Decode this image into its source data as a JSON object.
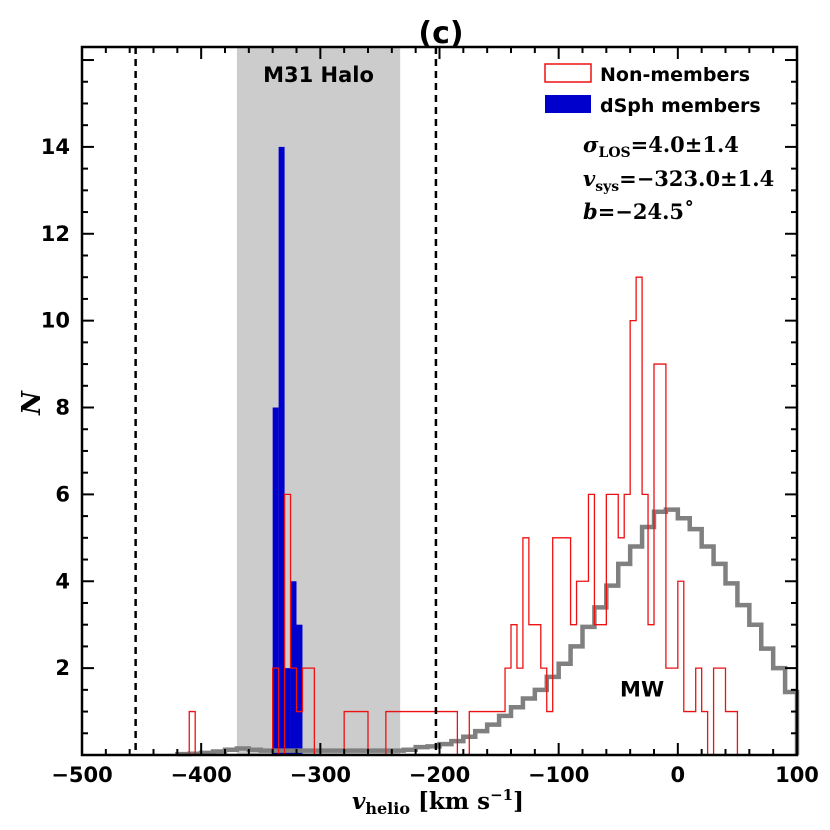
{
  "chart_data": {
    "type": "histogram",
    "title": "(c)",
    "xlabel": "v_helio [km s^-1]",
    "xlabel_parts": {
      "main": "v",
      "sub": "helio",
      "unit_open": " [km s",
      "unit_sup": "−1",
      "unit_close": "]"
    },
    "ylabel": "N",
    "xlim": [
      -500,
      100
    ],
    "ylim": [
      0,
      16.3
    ],
    "xticks": [
      -500,
      -400,
      -300,
      -200,
      -100,
      0,
      100
    ],
    "xtick_labels": [
      "−500",
      "−400",
      "−300",
      "−200",
      "−100",
      "0",
      "100"
    ],
    "yticks": [
      2,
      4,
      6,
      8,
      10,
      12,
      14
    ],
    "ytick_labels": [
      "2",
      "4",
      "6",
      "8",
      "10",
      "12",
      "14"
    ],
    "band": {
      "label": "M31 Halo",
      "from": -370,
      "to": -233,
      "color": "#cccccc"
    },
    "vlines": [
      -455,
      -203
    ],
    "nonmembers": {
      "name": "Non-members",
      "color": "#ee1111",
      "bin_width": 5,
      "bins": [
        [
          -410,
          1
        ],
        [
          -340,
          2
        ],
        [
          -330,
          6
        ],
        [
          -325,
          2
        ],
        [
          -320,
          1
        ],
        [
          -315,
          2
        ],
        [
          -310,
          2
        ],
        [
          -280,
          1
        ],
        [
          -275,
          1
        ],
        [
          -270,
          1
        ],
        [
          -265,
          1
        ],
        [
          -245,
          1
        ],
        [
          -240,
          1
        ],
        [
          -235,
          1
        ],
        [
          -230,
          1
        ],
        [
          -225,
          1
        ],
        [
          -220,
          1
        ],
        [
          -215,
          1
        ],
        [
          -210,
          1
        ],
        [
          -205,
          1
        ],
        [
          -200,
          1
        ],
        [
          -195,
          1
        ],
        [
          -190,
          1
        ],
        [
          -175,
          1
        ],
        [
          -170,
          1
        ],
        [
          -165,
          1
        ],
        [
          -160,
          1
        ],
        [
          -155,
          1
        ],
        [
          -150,
          1
        ],
        [
          -145,
          2
        ],
        [
          -140,
          3
        ],
        [
          -135,
          2
        ],
        [
          -130,
          5
        ],
        [
          -125,
          3
        ],
        [
          -120,
          3
        ],
        [
          -115,
          2
        ],
        [
          -110,
          1
        ],
        [
          -105,
          5
        ],
        [
          -100,
          5
        ],
        [
          -95,
          5
        ],
        [
          -90,
          3
        ],
        [
          -85,
          4
        ],
        [
          -80,
          4
        ],
        [
          -75,
          6
        ],
        [
          -70,
          3
        ],
        [
          -65,
          3
        ],
        [
          -60,
          6
        ],
        [
          -55,
          6
        ],
        [
          -50,
          5
        ],
        [
          -45,
          6
        ],
        [
          -40,
          10
        ],
        [
          -35,
          11
        ],
        [
          -30,
          6
        ],
        [
          -25,
          3
        ],
        [
          -20,
          9
        ],
        [
          -15,
          9
        ],
        [
          -10,
          2
        ],
        [
          -5,
          2
        ],
        [
          0,
          4
        ],
        [
          5,
          1
        ],
        [
          10,
          1
        ],
        [
          15,
          2
        ],
        [
          20,
          1
        ],
        [
          25,
          0
        ],
        [
          30,
          2
        ],
        [
          35,
          2
        ],
        [
          40,
          1
        ],
        [
          45,
          1
        ]
      ]
    },
    "members": {
      "name": "dSph members",
      "color": "#0000cc",
      "bin_width": 5,
      "bins": [
        [
          -340,
          8
        ],
        [
          -335,
          14
        ],
        [
          -330,
          2
        ],
        [
          -325,
          4
        ],
        [
          -320,
          3
        ]
      ]
    },
    "mw_model": {
      "label": "MW",
      "color": "#808080",
      "bin_width": 10,
      "bins": [
        [
          -420,
          0.02
        ],
        [
          -410,
          0.03
        ],
        [
          -400,
          0.05
        ],
        [
          -390,
          0.08
        ],
        [
          -380,
          0.12
        ],
        [
          -370,
          0.15
        ],
        [
          -360,
          0.12
        ],
        [
          -350,
          0.1
        ],
        [
          -340,
          0.1
        ],
        [
          -330,
          0.1
        ],
        [
          -320,
          0.1
        ],
        [
          -310,
          0.1
        ],
        [
          -300,
          0.1
        ],
        [
          -290,
          0.1
        ],
        [
          -280,
          0.1
        ],
        [
          -270,
          0.1
        ],
        [
          -260,
          0.1
        ],
        [
          -250,
          0.1
        ],
        [
          -240,
          0.1
        ],
        [
          -230,
          0.12
        ],
        [
          -220,
          0.18
        ],
        [
          -210,
          0.2
        ],
        [
          -200,
          0.25
        ],
        [
          -190,
          0.32
        ],
        [
          -180,
          0.42
        ],
        [
          -170,
          0.55
        ],
        [
          -160,
          0.7
        ],
        [
          -150,
          0.9
        ],
        [
          -140,
          1.1
        ],
        [
          -130,
          1.3
        ],
        [
          -120,
          1.5
        ],
        [
          -110,
          1.8
        ],
        [
          -100,
          2.1
        ],
        [
          -90,
          2.5
        ],
        [
          -80,
          2.95
        ],
        [
          -70,
          3.4
        ],
        [
          -60,
          3.9
        ],
        [
          -50,
          4.4
        ],
        [
          -40,
          4.8
        ],
        [
          -30,
          5.25
        ],
        [
          -20,
          5.6
        ],
        [
          -10,
          5.65
        ],
        [
          0,
          5.45
        ],
        [
          10,
          5.2
        ],
        [
          20,
          4.8
        ],
        [
          30,
          4.4
        ],
        [
          40,
          3.95
        ],
        [
          50,
          3.45
        ],
        [
          60,
          3.0
        ],
        [
          70,
          2.45
        ],
        [
          80,
          2.0
        ],
        [
          90,
          1.45
        ]
      ]
    },
    "legend": {
      "position": "top-right",
      "entries": [
        "Non-members",
        "dSph members"
      ]
    },
    "annotations": {
      "sigma": {
        "sym": "σ",
        "sub": "LOS",
        "value": "=4.0±1.4"
      },
      "vsys": {
        "sym": "v",
        "sub": "sys",
        "value": "=−323.0±1.4"
      },
      "b": {
        "sym": "b",
        "value": "=−24.5˚"
      }
    }
  }
}
